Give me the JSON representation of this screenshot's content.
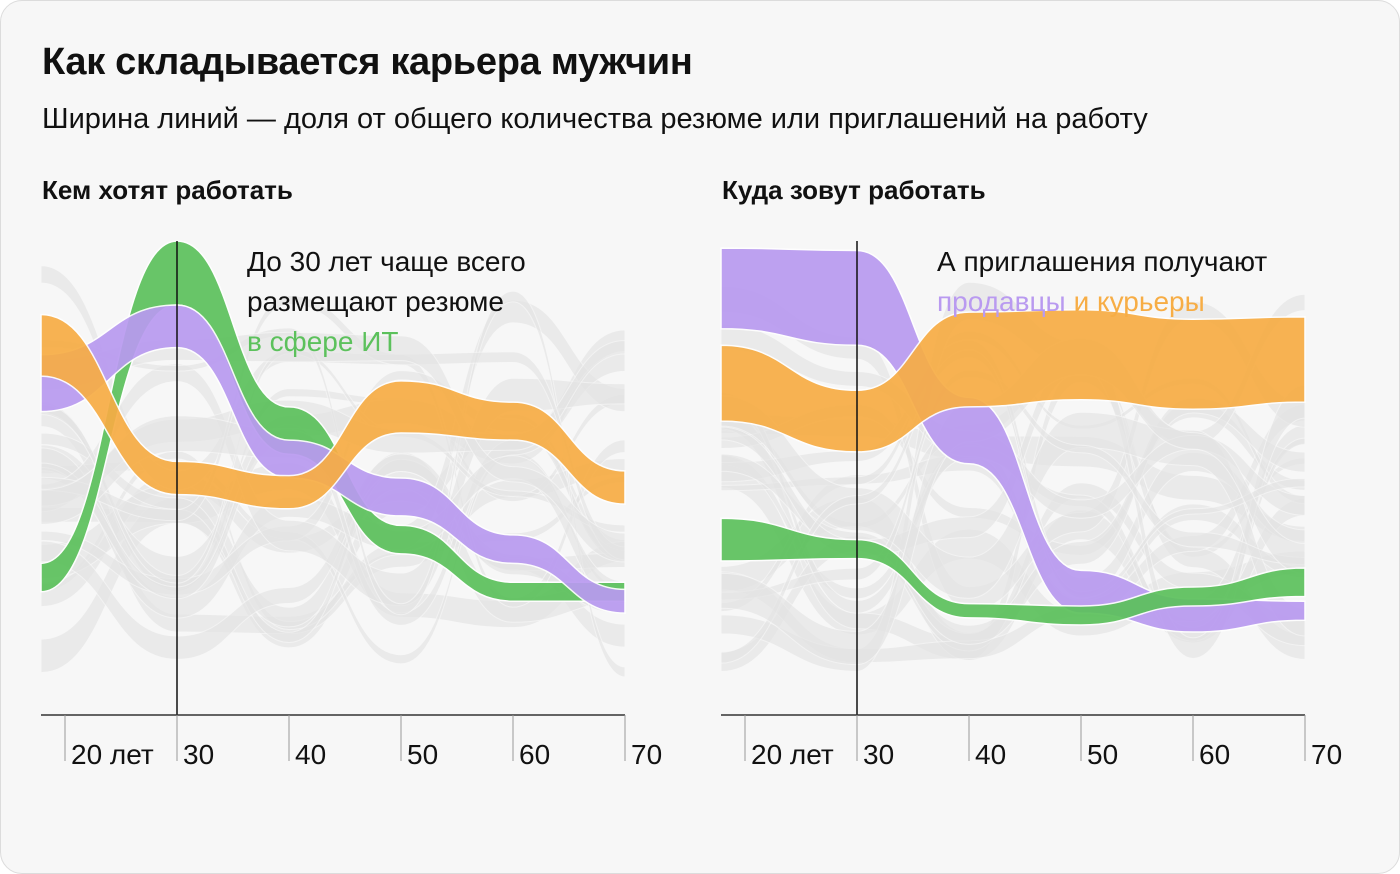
{
  "title": "Как складывается карьера мужчин",
  "subtitle": "Ширина линий — доля от общего количества резюме или приглашений на работу",
  "colors": {
    "it": "#5cc15c",
    "sales": "#b99af0",
    "couriers": "#f7ad45",
    "context": "#e2e2e2",
    "background": "#f7f7f7"
  },
  "panels": [
    {
      "title": "Кем хотят работать",
      "annotation": {
        "line1": "До 30 лет чаще всего",
        "line2": "размещают резюме",
        "highlight_text": "в сфере ИТ"
      },
      "ticks": [
        "20 лет",
        "30",
        "40",
        "50",
        "60",
        "70"
      ]
    },
    {
      "title": "Куда зовут работать",
      "annotation": {
        "line1": "А приглашения получают",
        "highlight_sales": "продавцы",
        "highlight_couriers": "и курьеры"
      },
      "ticks": [
        "20 лет",
        "30",
        "40",
        "50",
        "60",
        "70"
      ]
    }
  ],
  "chart_data": [
    {
      "type": "area",
      "title": "Кем хотят работать",
      "x": [
        18,
        30,
        40,
        50,
        60,
        70
      ],
      "x_tick_labels": [
        "20 лет",
        "30",
        "40",
        "50",
        "60",
        "70"
      ],
      "series": [
        {
          "name": "в сфере ИТ",
          "color": "it",
          "center_rank": [
            0.29,
            0.97,
            0.6,
            0.37,
            0.26,
            0.26
          ],
          "share": [
            0.06,
            0.21,
            0.1,
            0.06,
            0.04,
            0.04
          ]
        },
        {
          "color": "sales",
          "center_rank": [
            0.7,
            0.82,
            0.54,
            0.46,
            0.35,
            0.24
          ],
          "share": [
            0.12,
            0.09,
            0.08,
            0.08,
            0.06,
            0.05
          ]
        },
        {
          "color": "couriers",
          "center_rank": [
            0.78,
            0.5,
            0.47,
            0.65,
            0.62,
            0.48
          ],
          "share": [
            0.13,
            0.07,
            0.07,
            0.11,
            0.08,
            0.07
          ]
        }
      ]
    },
    {
      "type": "area",
      "title": "Куда зовут работать",
      "x": [
        18,
        30,
        40,
        50,
        60,
        70
      ],
      "x_tick_labels": [
        "20 лет",
        "30",
        "40",
        "50",
        "60",
        "70"
      ],
      "series": [
        {
          "color": "sales",
          "center_rank": [
            0.9,
            0.88,
            0.6,
            0.26,
            0.21,
            0.22
          ],
          "share": [
            0.17,
            0.2,
            0.14,
            0.09,
            0.07,
            0.04
          ]
        },
        {
          "name": "и курьеры",
          "color": "couriers",
          "center_rank": [
            0.7,
            0.62,
            0.75,
            0.76,
            0.74,
            0.75
          ],
          "share": [
            0.16,
            0.13,
            0.2,
            0.19,
            0.19,
            0.18
          ]
        },
        {
          "color": "it",
          "center_rank": [
            0.37,
            0.35,
            0.22,
            0.21,
            0.25,
            0.28
          ],
          "share": [
            0.09,
            0.04,
            0.03,
            0.04,
            0.04,
            0.06
          ]
        }
      ]
    }
  ]
}
